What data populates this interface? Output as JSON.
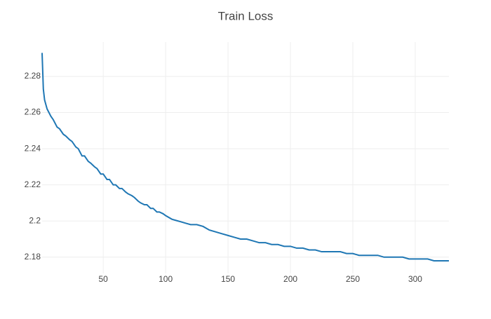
{
  "chart_data": {
    "type": "line",
    "title": "Train Loss",
    "x": [
      1,
      2,
      3,
      5,
      8,
      10,
      13,
      15,
      18,
      20,
      23,
      25,
      28,
      30,
      33,
      35,
      38,
      40,
      43,
      45,
      48,
      50,
      53,
      55,
      58,
      60,
      63,
      65,
      68,
      70,
      73,
      75,
      78,
      80,
      83,
      85,
      88,
      90,
      93,
      95,
      98,
      100,
      105,
      110,
      115,
      120,
      125,
      130,
      135,
      140,
      145,
      150,
      155,
      160,
      165,
      170,
      175,
      180,
      185,
      190,
      195,
      200,
      205,
      210,
      215,
      220,
      225,
      230,
      235,
      240,
      245,
      250,
      255,
      260,
      265,
      270,
      275,
      280,
      285,
      290,
      295,
      300,
      305,
      310,
      315,
      320,
      327
    ],
    "values": [
      2.293,
      2.273,
      2.267,
      2.262,
      2.258,
      2.256,
      2.252,
      2.251,
      2.248,
      2.247,
      2.245,
      2.244,
      2.241,
      2.24,
      2.236,
      2.236,
      2.233,
      2.232,
      2.23,
      2.229,
      2.226,
      2.226,
      2.223,
      2.223,
      2.22,
      2.22,
      2.218,
      2.218,
      2.216,
      2.215,
      2.214,
      2.213,
      2.211,
      2.21,
      2.209,
      2.209,
      2.207,
      2.207,
      2.205,
      2.205,
      2.204,
      2.203,
      2.201,
      2.2,
      2.199,
      2.198,
      2.198,
      2.197,
      2.195,
      2.194,
      2.193,
      2.192,
      2.191,
      2.19,
      2.19,
      2.189,
      2.188,
      2.188,
      2.187,
      2.187,
      2.186,
      2.186,
      2.185,
      2.185,
      2.184,
      2.184,
      2.183,
      2.183,
      2.183,
      2.183,
      2.182,
      2.182,
      2.181,
      2.181,
      2.181,
      2.181,
      2.18,
      2.18,
      2.18,
      2.18,
      2.179,
      2.179,
      2.179,
      2.179,
      2.178,
      2.178,
      2.178
    ],
    "color": "#1f77b4",
    "xlim": [
      1,
      327
    ],
    "xticks": [
      50,
      100,
      150,
      200,
      250,
      300
    ],
    "ylim": [
      2.171,
      2.299
    ],
    "yticks": [
      2.18,
      2.2,
      2.22,
      2.24,
      2.26,
      2.28
    ],
    "grid": true
  }
}
